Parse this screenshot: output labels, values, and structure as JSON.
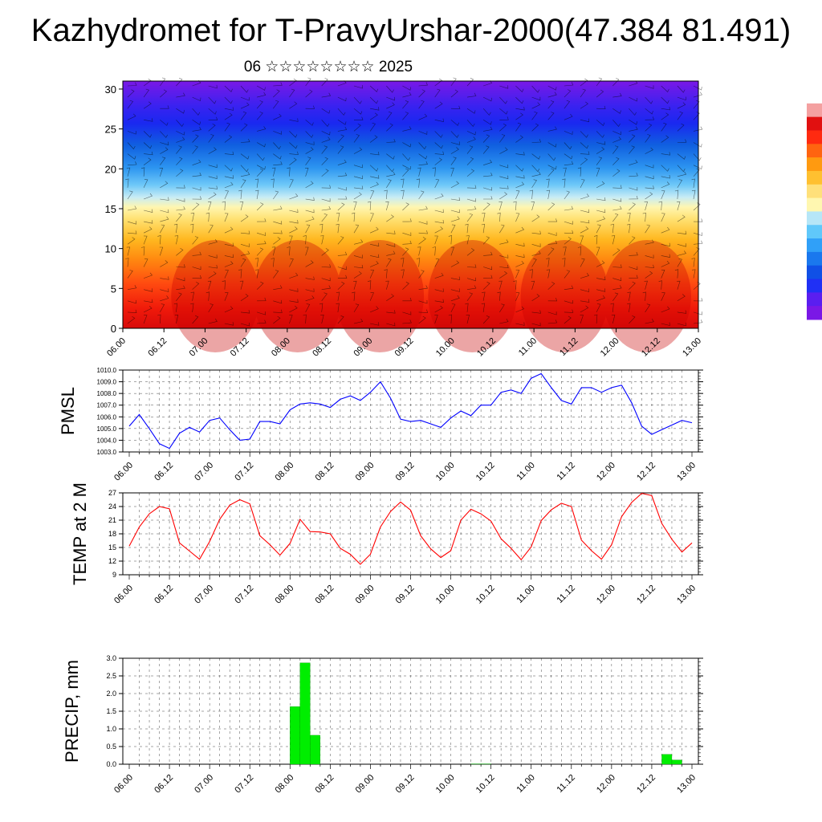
{
  "title": "Kazhydromet for T-PravyUrshar-2000(47.384 81.491)",
  "subtitle": "06 ☆☆☆☆☆☆☆☆ 2025",
  "x_tick_labels": [
    "06.00",
    "06.12",
    "07.00",
    "07.12",
    "08.00",
    "08.12",
    "09.00",
    "09.12",
    "10.00",
    "10.12",
    "11.00",
    "11.12",
    "12.00",
    "12.12",
    "13.00"
  ],
  "colorbar": {
    "colors": [
      "#7a18e6",
      "#5a1ef0",
      "#2030f5",
      "#1050e6",
      "#1a78ee",
      "#30a0f8",
      "#60c8fa",
      "#b6e6f7",
      "#fff7b0",
      "#ffe07a",
      "#ffc030",
      "#ff9a10",
      "#ff6410",
      "#ff2a10",
      "#e11010",
      "#f4a0a0",
      "#ffffff"
    ]
  },
  "chart_data": [
    {
      "type": "heatmap",
      "name": "temperature-wind-cross-section",
      "title": "",
      "y_ticks": [
        0,
        5,
        10,
        15,
        20,
        25,
        30
      ],
      "ylim": [
        0,
        31
      ],
      "x": [
        "06.00",
        "06.12",
        "07.00",
        "07.12",
        "08.00",
        "08.12",
        "09.00",
        "09.12",
        "10.00",
        "10.12",
        "11.00",
        "11.12",
        "12.00",
        "12.12",
        "13.00"
      ],
      "colors": {
        "low_levels": "#e11010",
        "mid_levels": "#ffe07a",
        "upper_levels": "#2030f5",
        "top": "#7a18e6"
      },
      "overlay": "wind barbs"
    },
    {
      "type": "line",
      "ylabel": "PMSL",
      "ylim": [
        1003.0,
        1010.0
      ],
      "y_ticks": [
        "1003.0",
        "1004.0",
        "1005.0",
        "1006.0",
        "1007.0",
        "1008.0",
        "1009.0",
        "1010.0"
      ],
      "line_color": "#0000ff",
      "x": [
        "06.00",
        "06.03",
        "06.06",
        "06.09",
        "06.12",
        "06.15",
        "06.18",
        "06.21",
        "07.00",
        "07.03",
        "07.06",
        "07.09",
        "07.12",
        "07.15",
        "07.18",
        "07.21",
        "08.00",
        "08.03",
        "08.06",
        "08.09",
        "08.12",
        "08.15",
        "08.18",
        "08.21",
        "09.00",
        "09.03",
        "09.06",
        "09.09",
        "09.12",
        "09.15",
        "09.18",
        "09.21",
        "10.00",
        "10.03",
        "10.06",
        "10.09",
        "10.12",
        "10.15",
        "10.18",
        "10.21",
        "11.00",
        "11.03",
        "11.06",
        "11.09",
        "11.12",
        "11.15",
        "11.18",
        "11.21",
        "12.00",
        "12.03",
        "12.06",
        "12.09",
        "12.12",
        "12.15",
        "12.18",
        "12.21",
        "13.00"
      ],
      "values": [
        1005.2,
        1006.2,
        1005.0,
        1003.7,
        1003.3,
        1004.6,
        1005.1,
        1004.7,
        1005.7,
        1005.9,
        1004.9,
        1004.0,
        1004.1,
        1005.6,
        1005.6,
        1005.4,
        1006.6,
        1007.1,
        1007.2,
        1007.1,
        1006.8,
        1007.5,
        1007.8,
        1007.4,
        1008.1,
        1009.0,
        1007.6,
        1005.8,
        1005.6,
        1005.7,
        1005.4,
        1005.1,
        1005.9,
        1006.5,
        1006.1,
        1007.0,
        1007.0,
        1008.1,
        1008.3,
        1008.0,
        1009.3,
        1009.7,
        1008.5,
        1007.4,
        1007.1,
        1008.5,
        1008.5,
        1008.1,
        1008.5,
        1008.7,
        1007.2,
        1005.2,
        1004.5,
        1004.9,
        1005.3,
        1005.7,
        1005.5
      ]
    },
    {
      "type": "line",
      "ylabel": "TEMP at 2 M",
      "ylim": [
        9,
        27
      ],
      "y_ticks": [
        "9",
        "12",
        "15",
        "18",
        "21",
        "24",
        "27"
      ],
      "line_color": "#ff0000",
      "x": [
        "06.00",
        "06.03",
        "06.06",
        "06.09",
        "06.12",
        "06.15",
        "06.18",
        "06.21",
        "07.00",
        "07.03",
        "07.06",
        "07.09",
        "07.12",
        "07.15",
        "07.18",
        "07.21",
        "08.00",
        "08.03",
        "08.06",
        "08.09",
        "08.12",
        "08.15",
        "08.18",
        "08.21",
        "09.00",
        "09.03",
        "09.06",
        "09.09",
        "09.12",
        "09.15",
        "09.18",
        "09.21",
        "10.00",
        "10.03",
        "10.06",
        "10.09",
        "10.12",
        "10.15",
        "10.18",
        "10.21",
        "11.00",
        "11.03",
        "11.06",
        "11.09",
        "11.12",
        "11.15",
        "11.18",
        "11.21",
        "12.00",
        "12.03",
        "12.06",
        "12.09",
        "12.12",
        "12.15",
        "12.18",
        "12.21",
        "13.00"
      ],
      "values": [
        15.3,
        19.5,
        22.4,
        24.0,
        23.5,
        16.0,
        14.2,
        12.4,
        16.3,
        21.2,
        24.3,
        25.5,
        24.6,
        17.6,
        15.6,
        13.3,
        15.9,
        21.2,
        18.5,
        18.4,
        18.0,
        14.8,
        13.5,
        11.3,
        13.5,
        19.5,
        22.9,
        25.0,
        23.2,
        17.6,
        14.7,
        12.8,
        14.3,
        21.0,
        23.4,
        22.4,
        20.8,
        16.9,
        14.8,
        12.3,
        15.1,
        20.9,
        23.3,
        24.7,
        24.0,
        16.6,
        14.3,
        12.4,
        15.6,
        21.8,
        24.9,
        26.9,
        26.4,
        20.3,
        16.8,
        14.0,
        16.0
      ]
    },
    {
      "type": "bar",
      "ylabel": "PRECIP, mm",
      "ylim": [
        0,
        3.0
      ],
      "y_ticks": [
        "0.0",
        "0.5",
        "1.0",
        "1.5",
        "2.0",
        "2.5",
        "3.0"
      ],
      "bar_color": "#00ee00",
      "bars": [
        {
          "x": "08.03",
          "value": 1.63
        },
        {
          "x": "08.06",
          "value": 2.87
        },
        {
          "x": "08.09",
          "value": 0.82
        },
        {
          "x": "10.09",
          "value": 0.01
        },
        {
          "x": "10.12",
          "value": 0.01
        },
        {
          "x": "12.18",
          "value": 0.28
        },
        {
          "x": "12.21",
          "value": 0.12
        }
      ]
    }
  ]
}
